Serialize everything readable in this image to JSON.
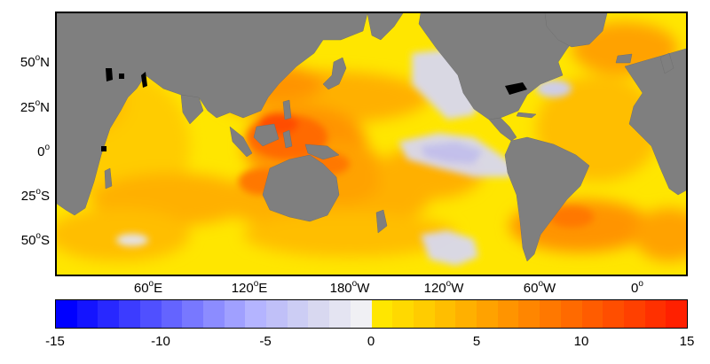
{
  "map": {
    "projection": "equirectangular, Pacific-centred",
    "longitude_labels": [
      {
        "deg": "60",
        "hem": "E"
      },
      {
        "deg": "120",
        "hem": "E"
      },
      {
        "deg": "180",
        "hem": "W"
      },
      {
        "deg": "120",
        "hem": "W"
      },
      {
        "deg": "60",
        "hem": "W"
      },
      {
        "deg": "0",
        "hem": ""
      }
    ],
    "latitude_labels": [
      {
        "deg": "50",
        "hem": "N"
      },
      {
        "deg": "25",
        "hem": "N"
      },
      {
        "deg": "0",
        "hem": ""
      },
      {
        "deg": "25",
        "hem": "S"
      },
      {
        "deg": "50",
        "hem": "S"
      }
    ],
    "land_color": "#7f7f7f",
    "lake_color": "#000000"
  },
  "colorbar": {
    "ticks": [
      "-15",
      "-10",
      "-5",
      "0",
      "5",
      "10",
      "15"
    ],
    "range": [
      -15,
      15
    ],
    "n_bins": 30,
    "colors": [
      "#0000ff",
      "#1414ff",
      "#2828ff",
      "#3c3cff",
      "#5050ff",
      "#6464ff",
      "#7878ff",
      "#8c8cff",
      "#a0a0ff",
      "#b4b4ff",
      "#c0c0f8",
      "#cccdf4",
      "#d8d8f0",
      "#e4e4f2",
      "#f0f0f4",
      "#ffe600",
      "#ffd900",
      "#ffcc00",
      "#ffbe00",
      "#ffb000",
      "#ffa200",
      "#ff9400",
      "#ff8600",
      "#ff7800",
      "#ff6a00",
      "#ff5c00",
      "#ff4e00",
      "#ff4000",
      "#ff3000",
      "#ff2000"
    ]
  }
}
